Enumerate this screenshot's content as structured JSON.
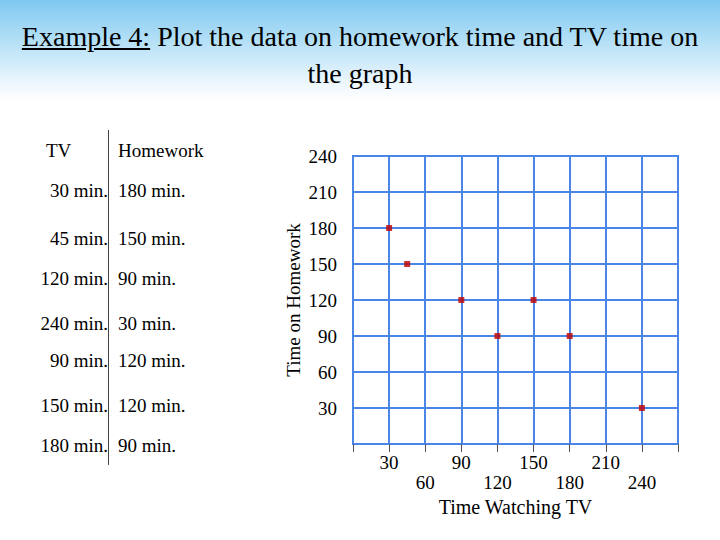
{
  "title": {
    "label": "Example 4:",
    "text": "Plot the data on homework time and TV time on the graph"
  },
  "table": {
    "header": [
      "TV",
      "Homework"
    ],
    "rows": [
      [
        "30 min.",
        "180 min."
      ],
      [
        "45 min.",
        "150 min."
      ],
      [
        "120 min.",
        "90 min."
      ],
      [
        "240 min.",
        "30 min."
      ],
      [
        "90 min.",
        "120 min."
      ],
      [
        "150 min.",
        "120 min."
      ],
      [
        "180 min.",
        "90 min."
      ]
    ]
  },
  "chart_data": {
    "type": "scatter",
    "x": [
      30,
      45,
      120,
      240,
      90,
      150,
      180
    ],
    "values": [
      180,
      150,
      90,
      30,
      120,
      120,
      90
    ],
    "xlabel": "Time Watching TV",
    "ylabel": "Time on Homework",
    "xlim": [
      0,
      270
    ],
    "xticks": [
      30,
      60,
      90,
      120,
      150,
      180,
      210,
      240
    ],
    "ylim": [
      0,
      240
    ],
    "yticks": [
      30,
      60,
      90,
      120,
      150,
      180,
      210,
      240
    ],
    "grid": true,
    "color": "#c00000",
    "marker": "square"
  }
}
